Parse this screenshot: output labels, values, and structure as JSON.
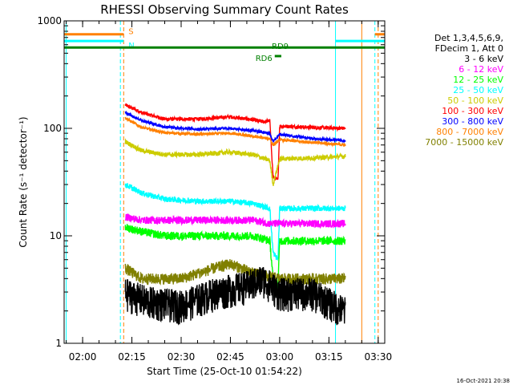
{
  "chart_data": {
    "type": "line",
    "title": "RHESSI Observing Summary Count Rates",
    "xlabel": "Start Time (25-Oct-10 01:54:22)",
    "ylabel": "Count Rate (s⁻¹ detector⁻¹)",
    "y_scale": "log",
    "ylim": [
      1,
      1000
    ],
    "xlim": [
      "01:54:22",
      "03:32:00"
    ],
    "x_ticks": [
      "02:00",
      "02:15",
      "02:30",
      "02:45",
      "03:00",
      "03:15",
      "03:30"
    ],
    "y_ticks": [
      "1",
      "10",
      "100",
      "1000"
    ],
    "legend": {
      "placement": "right",
      "header": [
        "Det 1,3,4,5,6,9,",
        "FDecim 1, Att 0"
      ],
      "entries": [
        {
          "label": "3 - 6 keV",
          "color": "#000000"
        },
        {
          "label": "6 - 12 keV",
          "color": "#ff00ff"
        },
        {
          "label": "12 - 25 keV",
          "color": "#00ff00"
        },
        {
          "label": "25 - 50 keV",
          "color": "#00ffff"
        },
        {
          "label": "50 - 100 keV",
          "color": "#cccc00"
        },
        {
          "label": "100 - 300 keV",
          "color": "#ff0000"
        },
        {
          "label": "300 - 800 keV",
          "color": "#0000ff"
        },
        {
          "label": "800 - 7000 keV",
          "color": "#ff8000"
        },
        {
          "label": "7000 - 15000 keV",
          "color": "#808000"
        }
      ]
    },
    "flags": [
      {
        "label": "S",
        "color": "#ff8000",
        "y": 750,
        "segments": [
          [
            "01:54:22",
            "02:12:30"
          ],
          [
            "03:29:00",
            "03:32:00"
          ]
        ]
      },
      {
        "label": "N",
        "color": "#00ffff",
        "y": 650,
        "segments": [
          [
            "01:54:22",
            "02:12:30"
          ],
          [
            "03:17:00",
            "03:32:00"
          ]
        ]
      },
      {
        "label": "RD9",
        "color": "#008000",
        "y": 565,
        "segments": [
          [
            "01:54:22",
            "03:32:00"
          ]
        ]
      },
      {
        "label": "RD6",
        "color": "#008000",
        "y": 470,
        "segments": [
          [
            "02:58:30",
            "03:00:30"
          ]
        ]
      }
    ],
    "vertical_lines": [
      {
        "x": "01:55:00",
        "color": "#00ffff",
        "style": "solid"
      },
      {
        "x": "02:11:30",
        "color": "#00ffff",
        "style": "dashed"
      },
      {
        "x": "02:12:30",
        "color": "#ff8000",
        "style": "dashed"
      },
      {
        "x": "03:17:00",
        "color": "#00ffff",
        "style": "solid"
      },
      {
        "x": "03:25:00",
        "color": "#ff8000",
        "style": "solid"
      },
      {
        "x": "03:29:00",
        "color": "#00ffff",
        "style": "dashed"
      },
      {
        "x": "03:30:00",
        "color": "#ff8000",
        "style": "dashed"
      }
    ],
    "series": [
      {
        "name": "100 - 300 keV",
        "color": "#ff0000",
        "noise": 0.04,
        "points": [
          [
            "02:13:00",
            165
          ],
          [
            "02:18:00",
            140
          ],
          [
            "02:25:00",
            122
          ],
          [
            "02:35:00",
            122
          ],
          [
            "02:45:00",
            128
          ],
          [
            "02:52:00",
            120
          ],
          [
            "02:55:00",
            115
          ],
          [
            "02:57:00",
            118
          ],
          [
            "02:58:00",
            35
          ],
          [
            "02:59:30",
            33
          ],
          [
            "03:00:00",
            105
          ],
          [
            "03:10:00",
            102
          ],
          [
            "03:20:00",
            100
          ]
        ]
      },
      {
        "name": "300 - 800 keV",
        "color": "#0000ff",
        "noise": 0.03,
        "points": [
          [
            "02:13:00",
            140
          ],
          [
            "02:18:00",
            118
          ],
          [
            "02:25:00",
            103
          ],
          [
            "02:35:00",
            98
          ],
          [
            "02:45:00",
            100
          ],
          [
            "02:52:00",
            95
          ],
          [
            "02:57:00",
            90
          ],
          [
            "02:58:00",
            75
          ],
          [
            "03:00:00",
            88
          ],
          [
            "03:10:00",
            80
          ],
          [
            "03:20:00",
            77
          ]
        ]
      },
      {
        "name": "800 - 7000 keV",
        "color": "#ff8000",
        "noise": 0.03,
        "points": [
          [
            "02:13:00",
            125
          ],
          [
            "02:18:00",
            102
          ],
          [
            "02:25:00",
            91
          ],
          [
            "02:35:00",
            88
          ],
          [
            "02:45:00",
            90
          ],
          [
            "02:52:00",
            84
          ],
          [
            "02:57:00",
            80
          ],
          [
            "02:58:00",
            70
          ],
          [
            "03:00:00",
            78
          ],
          [
            "03:10:00",
            74
          ],
          [
            "03:20:00",
            70
          ]
        ]
      },
      {
        "name": "50 - 100 keV",
        "color": "#cccc00",
        "noise": 0.05,
        "points": [
          [
            "02:13:00",
            75
          ],
          [
            "02:18:00",
            62
          ],
          [
            "02:25:00",
            57
          ],
          [
            "02:35:00",
            57
          ],
          [
            "02:45:00",
            60
          ],
          [
            "02:52:00",
            57
          ],
          [
            "02:57:00",
            50
          ],
          [
            "02:58:00",
            30
          ],
          [
            "03:00:00",
            52
          ],
          [
            "03:10:00",
            53
          ],
          [
            "03:20:00",
            55
          ]
        ]
      },
      {
        "name": "25 - 50 keV",
        "color": "#00ffff",
        "noise": 0.06,
        "points": [
          [
            "02:13:00",
            30
          ],
          [
            "02:18:00",
            25
          ],
          [
            "02:25:00",
            22
          ],
          [
            "02:35:00",
            21
          ],
          [
            "02:45:00",
            21
          ],
          [
            "02:52:00",
            20
          ],
          [
            "02:57:00",
            18
          ],
          [
            "02:58:00",
            7
          ],
          [
            "02:59:30",
            6
          ],
          [
            "03:00:00",
            18
          ],
          [
            "03:10:00",
            18
          ],
          [
            "03:20:00",
            18
          ]
        ]
      },
      {
        "name": "6 - 12 keV",
        "color": "#ff00ff",
        "noise": 0.08,
        "points": [
          [
            "02:13:00",
            15
          ],
          [
            "02:18:00",
            14
          ],
          [
            "02:25:00",
            14
          ],
          [
            "02:35:00",
            14
          ],
          [
            "02:45:00",
            14
          ],
          [
            "02:52:00",
            14
          ],
          [
            "02:57:00",
            13
          ],
          [
            "03:00:00",
            13
          ],
          [
            "03:10:00",
            13
          ],
          [
            "03:20:00",
            13
          ]
        ]
      },
      {
        "name": "12 - 25 keV",
        "color": "#00ff00",
        "noise": 0.09,
        "points": [
          [
            "02:13:00",
            12
          ],
          [
            "02:18:00",
            11
          ],
          [
            "02:25:00",
            10
          ],
          [
            "02:35:00",
            10
          ],
          [
            "02:45:00",
            10
          ],
          [
            "02:52:00",
            10
          ],
          [
            "02:57:00",
            9
          ],
          [
            "02:58:00",
            4
          ],
          [
            "02:59:30",
            3.5
          ],
          [
            "03:00:00",
            9
          ],
          [
            "03:10:00",
            9
          ],
          [
            "03:20:00",
            9
          ]
        ]
      },
      {
        "name": "7000 - 15000 keV",
        "color": "#808000",
        "noise": 0.12,
        "points": [
          [
            "02:13:00",
            5
          ],
          [
            "02:18:00",
            4
          ],
          [
            "02:30:00",
            4
          ],
          [
            "02:40:00",
            5
          ],
          [
            "02:45:00",
            5.5
          ],
          [
            "02:52:00",
            4.5
          ],
          [
            "03:00:00",
            4
          ],
          [
            "03:10:00",
            4
          ],
          [
            "03:20:00",
            4
          ]
        ]
      },
      {
        "name": "3 - 6 keV",
        "color": "#000000",
        "noise": 0.35,
        "points": [
          [
            "02:13:00",
            3
          ],
          [
            "02:20:00",
            2.5
          ],
          [
            "02:30:00",
            2.3
          ],
          [
            "02:40:00",
            3
          ],
          [
            "02:50:00",
            3.5
          ],
          [
            "02:55:00",
            4
          ],
          [
            "03:00:00",
            3
          ],
          [
            "03:10:00",
            3
          ],
          [
            "03:20:00",
            2
          ]
        ]
      }
    ]
  },
  "footer": {
    "timestamp": "16-Oct-2021 20:38"
  }
}
